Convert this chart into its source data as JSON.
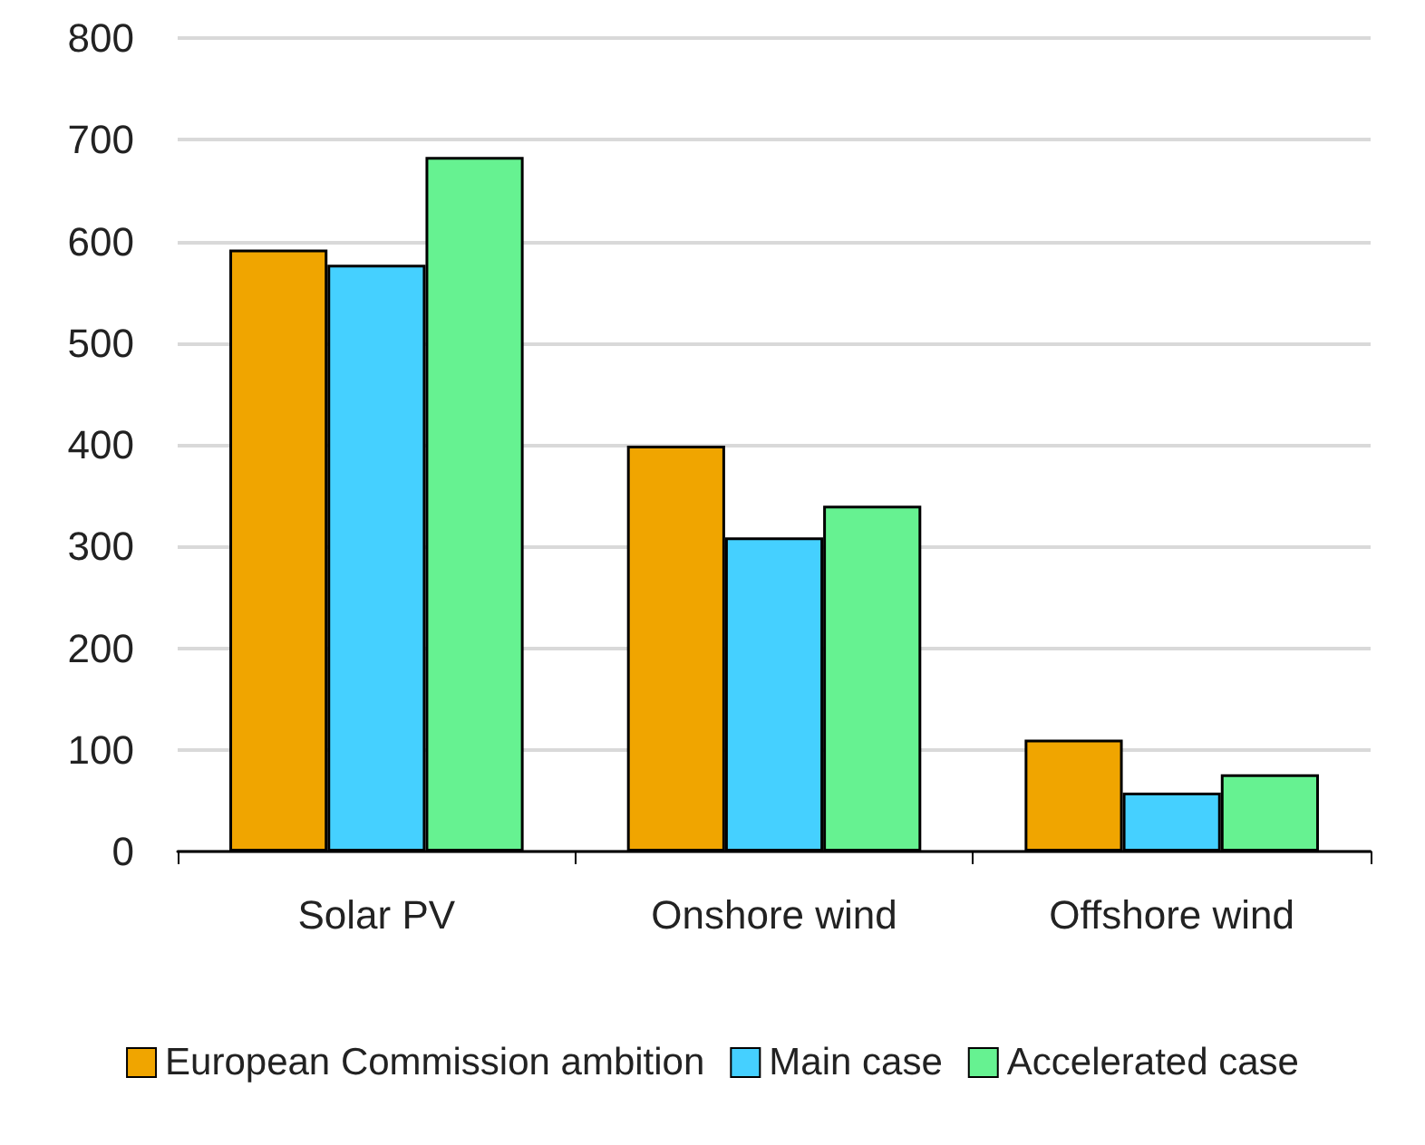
{
  "chart_data": {
    "type": "bar",
    "categories": [
      "Solar PV",
      "Onshore wind",
      "Offshore wind"
    ],
    "series": [
      {
        "name": "European Commission ambition",
        "color": "#f0a500",
        "values": [
          592,
          399,
          110
        ]
      },
      {
        "name": "Main case",
        "color": "#45d0ff",
        "values": [
          577,
          309,
          58
        ]
      },
      {
        "name": "Accelerated case",
        "color": "#66f291",
        "values": [
          683,
          340,
          76
        ]
      }
    ],
    "ylim": [
      0,
      800
    ],
    "yticks": [
      0,
      100,
      200,
      300,
      400,
      500,
      600,
      700,
      800
    ],
    "grid": "y",
    "legend": "bottom"
  }
}
